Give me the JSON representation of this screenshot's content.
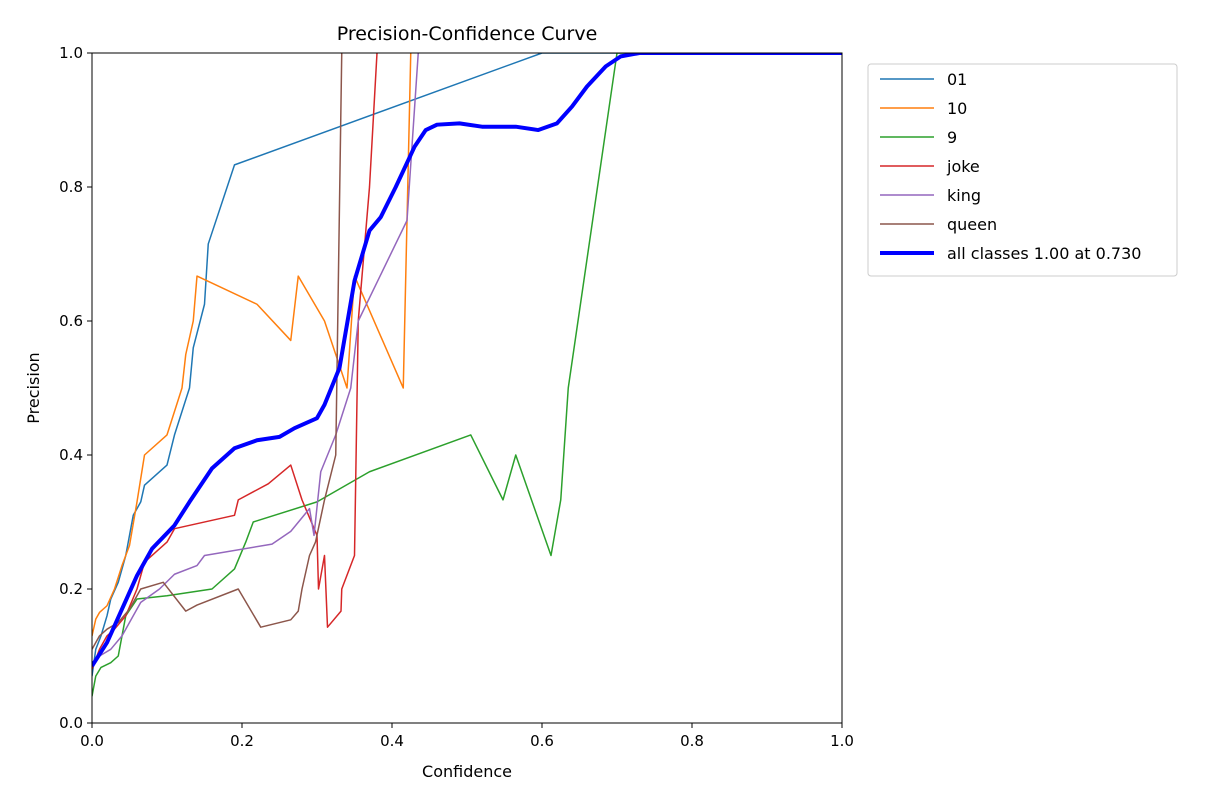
{
  "chart_data": {
    "type": "line",
    "title": "Precision-Confidence Curve",
    "xlabel": "Confidence",
    "ylabel": "Precision",
    "xlim": [
      0,
      1
    ],
    "ylim": [
      0,
      1
    ],
    "xticks": [
      "0.0",
      "0.2",
      "0.4",
      "0.6",
      "0.8",
      "1.0"
    ],
    "yticks": [
      "0.0",
      "0.2",
      "0.4",
      "0.6",
      "0.8",
      "1.0"
    ],
    "grid": false,
    "legend_position": "outside-top-right",
    "series": [
      {
        "name": "01",
        "color": "#1f77b4",
        "width": 1.5,
        "points": [
          [
            0,
            0.07
          ],
          [
            0.005,
            0.11
          ],
          [
            0.012,
            0.13
          ],
          [
            0.02,
            0.16
          ],
          [
            0.025,
            0.185
          ],
          [
            0.035,
            0.21
          ],
          [
            0.045,
            0.25
          ],
          [
            0.055,
            0.31
          ],
          [
            0.065,
            0.33
          ],
          [
            0.07,
            0.355
          ],
          [
            0.1,
            0.385
          ],
          [
            0.11,
            0.43
          ],
          [
            0.13,
            0.5
          ],
          [
            0.135,
            0.56
          ],
          [
            0.15,
            0.625
          ],
          [
            0.155,
            0.715
          ],
          [
            0.19,
            0.833
          ],
          [
            0.6,
            1.0
          ],
          [
            1.0,
            1.0
          ]
        ]
      },
      {
        "name": "10",
        "color": "#ff7f0e",
        "width": 1.5,
        "points": [
          [
            0,
            0.13
          ],
          [
            0.005,
            0.155
          ],
          [
            0.01,
            0.165
          ],
          [
            0.02,
            0.175
          ],
          [
            0.03,
            0.2
          ],
          [
            0.04,
            0.235
          ],
          [
            0.05,
            0.265
          ],
          [
            0.06,
            0.33
          ],
          [
            0.07,
            0.4
          ],
          [
            0.1,
            0.43
          ],
          [
            0.12,
            0.5
          ],
          [
            0.125,
            0.55
          ],
          [
            0.135,
            0.6
          ],
          [
            0.14,
            0.667
          ],
          [
            0.22,
            0.625
          ],
          [
            0.265,
            0.571
          ],
          [
            0.275,
            0.667
          ],
          [
            0.31,
            0.6
          ],
          [
            0.34,
            0.5
          ],
          [
            0.35,
            0.667
          ],
          [
            0.415,
            0.5
          ],
          [
            0.425,
            1.0
          ]
        ]
      },
      {
        "name": "9",
        "color": "#2ca02c",
        "width": 1.5,
        "points": [
          [
            0,
            0.04
          ],
          [
            0.005,
            0.07
          ],
          [
            0.012,
            0.083
          ],
          [
            0.025,
            0.09
          ],
          [
            0.035,
            0.1
          ],
          [
            0.045,
            0.16
          ],
          [
            0.06,
            0.185
          ],
          [
            0.1,
            0.19
          ],
          [
            0.16,
            0.2
          ],
          [
            0.19,
            0.23
          ],
          [
            0.205,
            0.27
          ],
          [
            0.215,
            0.3
          ],
          [
            0.3,
            0.33
          ],
          [
            0.37,
            0.375
          ],
          [
            0.505,
            0.43
          ],
          [
            0.548,
            0.333
          ],
          [
            0.565,
            0.4
          ],
          [
            0.612,
            0.25
          ],
          [
            0.625,
            0.333
          ],
          [
            0.635,
            0.5
          ],
          [
            0.7,
            1.0
          ],
          [
            1.0,
            1.0
          ]
        ]
      },
      {
        "name": "joke",
        "color": "#d62728",
        "width": 1.5,
        "points": [
          [
            0,
            0.08
          ],
          [
            0.01,
            0.11
          ],
          [
            0.02,
            0.13
          ],
          [
            0.03,
            0.14
          ],
          [
            0.045,
            0.16
          ],
          [
            0.06,
            0.2
          ],
          [
            0.07,
            0.24
          ],
          [
            0.1,
            0.27
          ],
          [
            0.11,
            0.29
          ],
          [
            0.19,
            0.31
          ],
          [
            0.195,
            0.333
          ],
          [
            0.235,
            0.357
          ],
          [
            0.265,
            0.385
          ],
          [
            0.28,
            0.333
          ],
          [
            0.3,
            0.28
          ],
          [
            0.302,
            0.2
          ],
          [
            0.31,
            0.25
          ],
          [
            0.314,
            0.143
          ],
          [
            0.332,
            0.167
          ],
          [
            0.333,
            0.2
          ],
          [
            0.35,
            0.25
          ],
          [
            0.355,
            0.6
          ],
          [
            0.37,
            0.8
          ],
          [
            0.38,
            1.0
          ]
        ]
      },
      {
        "name": "king",
        "color": "#9467bd",
        "width": 1.5,
        "points": [
          [
            0,
            0.09
          ],
          [
            0.01,
            0.1
          ],
          [
            0.025,
            0.11
          ],
          [
            0.04,
            0.13
          ],
          [
            0.055,
            0.16
          ],
          [
            0.065,
            0.18
          ],
          [
            0.09,
            0.2
          ],
          [
            0.11,
            0.222
          ],
          [
            0.14,
            0.235
          ],
          [
            0.15,
            0.25
          ],
          [
            0.24,
            0.267
          ],
          [
            0.265,
            0.286
          ],
          [
            0.29,
            0.32
          ],
          [
            0.296,
            0.28
          ],
          [
            0.305,
            0.375
          ],
          [
            0.325,
            0.43
          ],
          [
            0.345,
            0.5
          ],
          [
            0.355,
            0.6
          ],
          [
            0.42,
            0.75
          ],
          [
            0.435,
            1.0
          ]
        ]
      },
      {
        "name": "queen",
        "color": "#8c564b",
        "width": 1.5,
        "points": [
          [
            0,
            0.11
          ],
          [
            0.01,
            0.13
          ],
          [
            0.02,
            0.14
          ],
          [
            0.035,
            0.15
          ],
          [
            0.05,
            0.17
          ],
          [
            0.065,
            0.2
          ],
          [
            0.095,
            0.21
          ],
          [
            0.125,
            0.167
          ],
          [
            0.14,
            0.176
          ],
          [
            0.195,
            0.2
          ],
          [
            0.225,
            0.143
          ],
          [
            0.265,
            0.154
          ],
          [
            0.275,
            0.167
          ],
          [
            0.28,
            0.2
          ],
          [
            0.29,
            0.25
          ],
          [
            0.298,
            0.27
          ],
          [
            0.31,
            0.333
          ],
          [
            0.325,
            0.4
          ],
          [
            0.333,
            1.0
          ]
        ]
      },
      {
        "name": "all classes 1.00 at 0.730",
        "color": "#0000ff",
        "width": 4,
        "points": [
          [
            0,
            0.085
          ],
          [
            0.02,
            0.12
          ],
          [
            0.04,
            0.17
          ],
          [
            0.06,
            0.22
          ],
          [
            0.08,
            0.26
          ],
          [
            0.11,
            0.295
          ],
          [
            0.13,
            0.33
          ],
          [
            0.16,
            0.38
          ],
          [
            0.19,
            0.41
          ],
          [
            0.22,
            0.422
          ],
          [
            0.25,
            0.427
          ],
          [
            0.27,
            0.44
          ],
          [
            0.3,
            0.455
          ],
          [
            0.31,
            0.475
          ],
          [
            0.33,
            0.53
          ],
          [
            0.35,
            0.66
          ],
          [
            0.37,
            0.735
          ],
          [
            0.385,
            0.755
          ],
          [
            0.405,
            0.8
          ],
          [
            0.43,
            0.86
          ],
          [
            0.445,
            0.885
          ],
          [
            0.46,
            0.893
          ],
          [
            0.49,
            0.895
          ],
          [
            0.52,
            0.89
          ],
          [
            0.565,
            0.89
          ],
          [
            0.595,
            0.885
          ],
          [
            0.62,
            0.895
          ],
          [
            0.64,
            0.92
          ],
          [
            0.66,
            0.95
          ],
          [
            0.685,
            0.98
          ],
          [
            0.705,
            0.995
          ],
          [
            0.73,
            1.0
          ],
          [
            1.0,
            1.0
          ]
        ]
      }
    ]
  }
}
